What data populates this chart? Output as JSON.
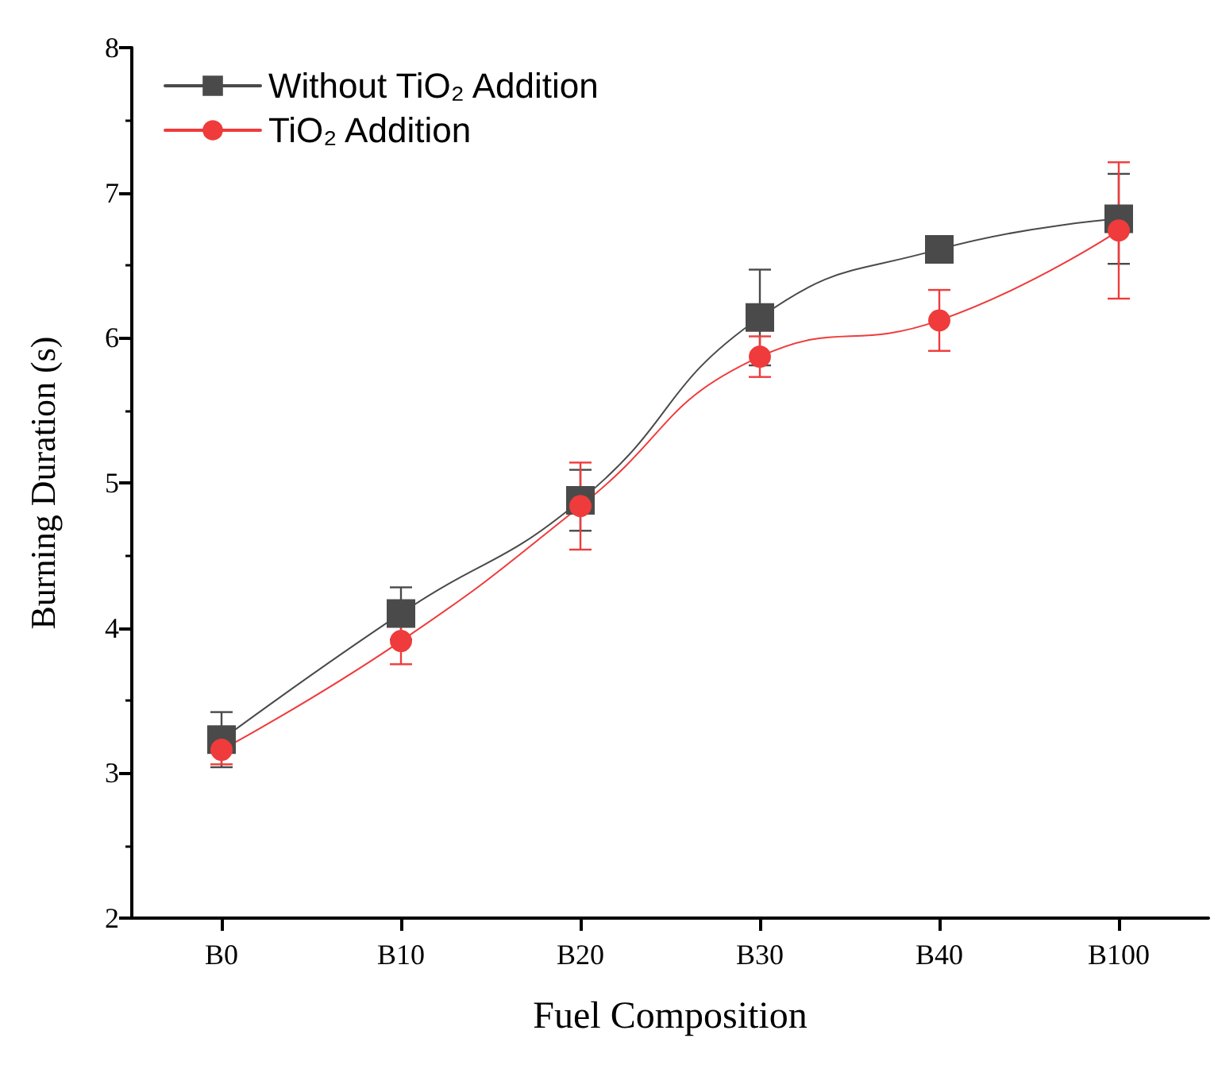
{
  "chart_data": {
    "type": "line",
    "xlabel": "Fuel Composition",
    "ylabel": "Burning Duration (s)",
    "categories": [
      "B0",
      "B10",
      "B20",
      "B30",
      "B40",
      "B100"
    ],
    "series": [
      {
        "name": "Without TiO₂ Addition",
        "color": "#4a4a4a",
        "marker": "square",
        "values": [
          3.23,
          4.1,
          4.88,
          6.14,
          6.61,
          6.82
        ],
        "errors": [
          0.19,
          0.18,
          0.21,
          0.33,
          0.09,
          0.31
        ]
      },
      {
        "name": "TiO₂ Addition",
        "color": "#ef3b3b",
        "marker": "circle",
        "values": [
          3.16,
          3.91,
          4.84,
          5.87,
          6.12,
          6.74
        ],
        "errors": [
          0.1,
          0.16,
          0.3,
          0.14,
          0.21,
          0.47
        ]
      }
    ],
    "ylim": [
      2,
      8
    ],
    "yticks": [
      2,
      3,
      4,
      5,
      6,
      7,
      8
    ],
    "grid": false,
    "legend": "top left",
    "line_style": "solid"
  }
}
